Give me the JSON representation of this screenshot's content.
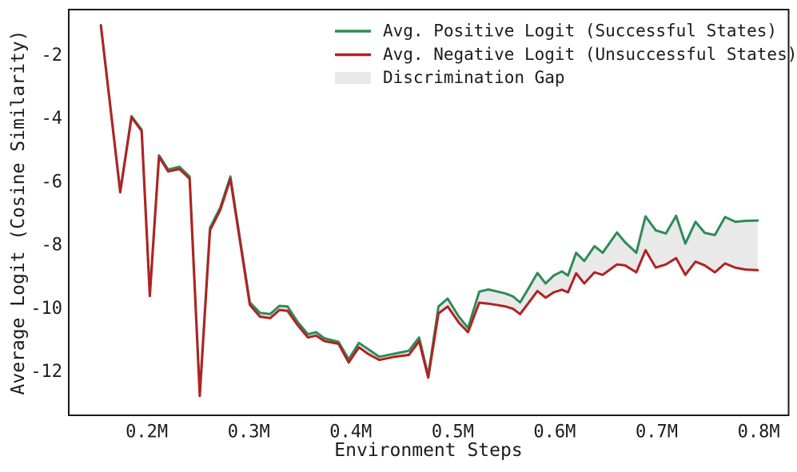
{
  "figure": {
    "background": "#ffffff",
    "frame_color": "#1a1a1a",
    "text_color": "#1c1c1c"
  },
  "chart_data": {
    "type": "line",
    "title": "",
    "xlabel": "Environment Steps",
    "ylabel": "Average Logit (Cosine Similarity)",
    "grid": false,
    "legend_position": "upper center",
    "xlim": [
      0.1235,
      0.8293
    ],
    "ylim": [
      -13.39,
      -0.56
    ],
    "x_ticks": [
      {
        "value": 0.2,
        "label": "0.2M"
      },
      {
        "value": 0.3,
        "label": "0.3M"
      },
      {
        "value": 0.4,
        "label": "0.4M"
      },
      {
        "value": 0.5,
        "label": "0.5M"
      },
      {
        "value": 0.6,
        "label": "0.6M"
      },
      {
        "value": 0.7,
        "label": "0.7M"
      },
      {
        "value": 0.8,
        "label": "0.8M"
      }
    ],
    "y_ticks": [
      {
        "value": -2,
        "label": "-2"
      },
      {
        "value": -4,
        "label": "-4"
      },
      {
        "value": -6,
        "label": "-6"
      },
      {
        "value": -8,
        "label": "-8"
      },
      {
        "value": -10,
        "label": "-10"
      },
      {
        "value": -12,
        "label": "-12"
      }
    ],
    "x_units": "millions of environment steps",
    "x": [
      0.155,
      0.174,
      0.185,
      0.195,
      0.203,
      0.212,
      0.221,
      0.232,
      0.242,
      0.252,
      0.262,
      0.272,
      0.282,
      0.301,
      0.311,
      0.321,
      0.33,
      0.338,
      0.348,
      0.358,
      0.366,
      0.374,
      0.388,
      0.398,
      0.408,
      0.417,
      0.428,
      0.443,
      0.457,
      0.467,
      0.476,
      0.486,
      0.495,
      0.506,
      0.515,
      0.526,
      0.535,
      0.543,
      0.552,
      0.559,
      0.566,
      0.574,
      0.583,
      0.591,
      0.599,
      0.607,
      0.613,
      0.621,
      0.629,
      0.639,
      0.647,
      0.661,
      0.669,
      0.68,
      0.689,
      0.699,
      0.709,
      0.719,
      0.728,
      0.738,
      0.747,
      0.757,
      0.767,
      0.777,
      0.787,
      0.799
    ],
    "series": [
      {
        "name": "Avg. Positive Logit (Successful States)",
        "color": "#2e8b57",
        "values": [
          -1.05,
          -6.3,
          -3.93,
          -4.36,
          -9.56,
          -5.17,
          -5.62,
          -5.53,
          -5.84,
          -12.7,
          -7.46,
          -6.82,
          -5.84,
          -9.82,
          -10.15,
          -10.19,
          -9.93,
          -9.95,
          -10.44,
          -10.83,
          -10.76,
          -10.95,
          -11.07,
          -11.62,
          -11.1,
          -11.3,
          -11.54,
          -11.44,
          -11.35,
          -10.93,
          -12.13,
          -9.95,
          -9.7,
          -10.27,
          -10.63,
          -9.48,
          -9.41,
          -9.47,
          -9.54,
          -9.63,
          -9.82,
          -9.39,
          -8.89,
          -9.22,
          -8.97,
          -8.84,
          -8.97,
          -8.25,
          -8.51,
          -8.04,
          -8.25,
          -7.61,
          -7.92,
          -8.25,
          -7.1,
          -7.54,
          -7.64,
          -7.08,
          -7.96,
          -7.27,
          -7.62,
          -7.69,
          -7.12,
          -7.27,
          -7.24,
          -7.23
        ]
      },
      {
        "name": "Avg. Negative Logit (Unsuccessful States)",
        "color": "#b22222",
        "values": [
          -1.07,
          -6.34,
          -3.97,
          -4.4,
          -9.62,
          -5.22,
          -5.68,
          -5.6,
          -5.91,
          -12.78,
          -7.54,
          -6.9,
          -5.92,
          -9.9,
          -10.27,
          -10.32,
          -10.06,
          -10.09,
          -10.54,
          -10.93,
          -10.87,
          -11.04,
          -11.13,
          -11.72,
          -11.24,
          -11.45,
          -11.64,
          -11.54,
          -11.48,
          -11.05,
          -12.2,
          -10.17,
          -9.95,
          -10.46,
          -10.76,
          -9.83,
          -9.86,
          -9.9,
          -9.95,
          -10.02,
          -10.19,
          -9.85,
          -9.46,
          -9.67,
          -9.5,
          -9.42,
          -9.5,
          -8.9,
          -9.22,
          -8.87,
          -8.95,
          -8.62,
          -8.65,
          -8.87,
          -8.17,
          -8.72,
          -8.62,
          -8.42,
          -8.95,
          -8.53,
          -8.65,
          -8.87,
          -8.59,
          -8.72,
          -8.78,
          -8.8
        ]
      }
    ],
    "gap_fill": {
      "label": "Discrimination Gap",
      "color": "#e9e9e9"
    }
  }
}
